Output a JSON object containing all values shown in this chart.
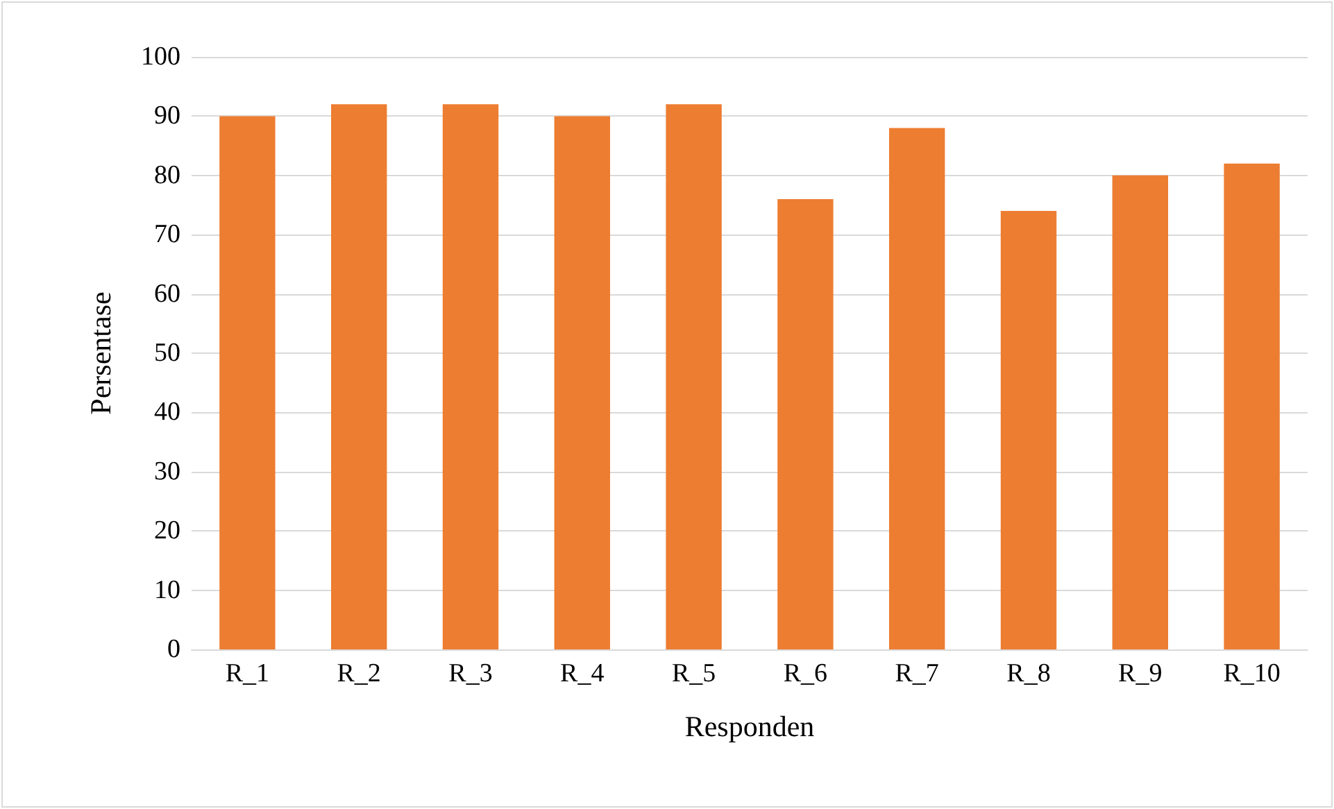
{
  "chart_data": {
    "type": "bar",
    "xlabel": "Responden",
    "ylabel": "Persentase",
    "categories": [
      "R_1",
      "R_2",
      "R_3",
      "R_4",
      "R_5",
      "R_6",
      "R_7",
      "R_8",
      "R_9",
      "R_10"
    ],
    "values": [
      90,
      92,
      92,
      90,
      92,
      76,
      88,
      74,
      80,
      82
    ],
    "color": "#ed7d31",
    "ylim": [
      0,
      100
    ],
    "yticks": [
      0,
      10,
      20,
      30,
      40,
      50,
      60,
      70,
      80,
      90,
      100
    ],
    "grid": "y"
  }
}
